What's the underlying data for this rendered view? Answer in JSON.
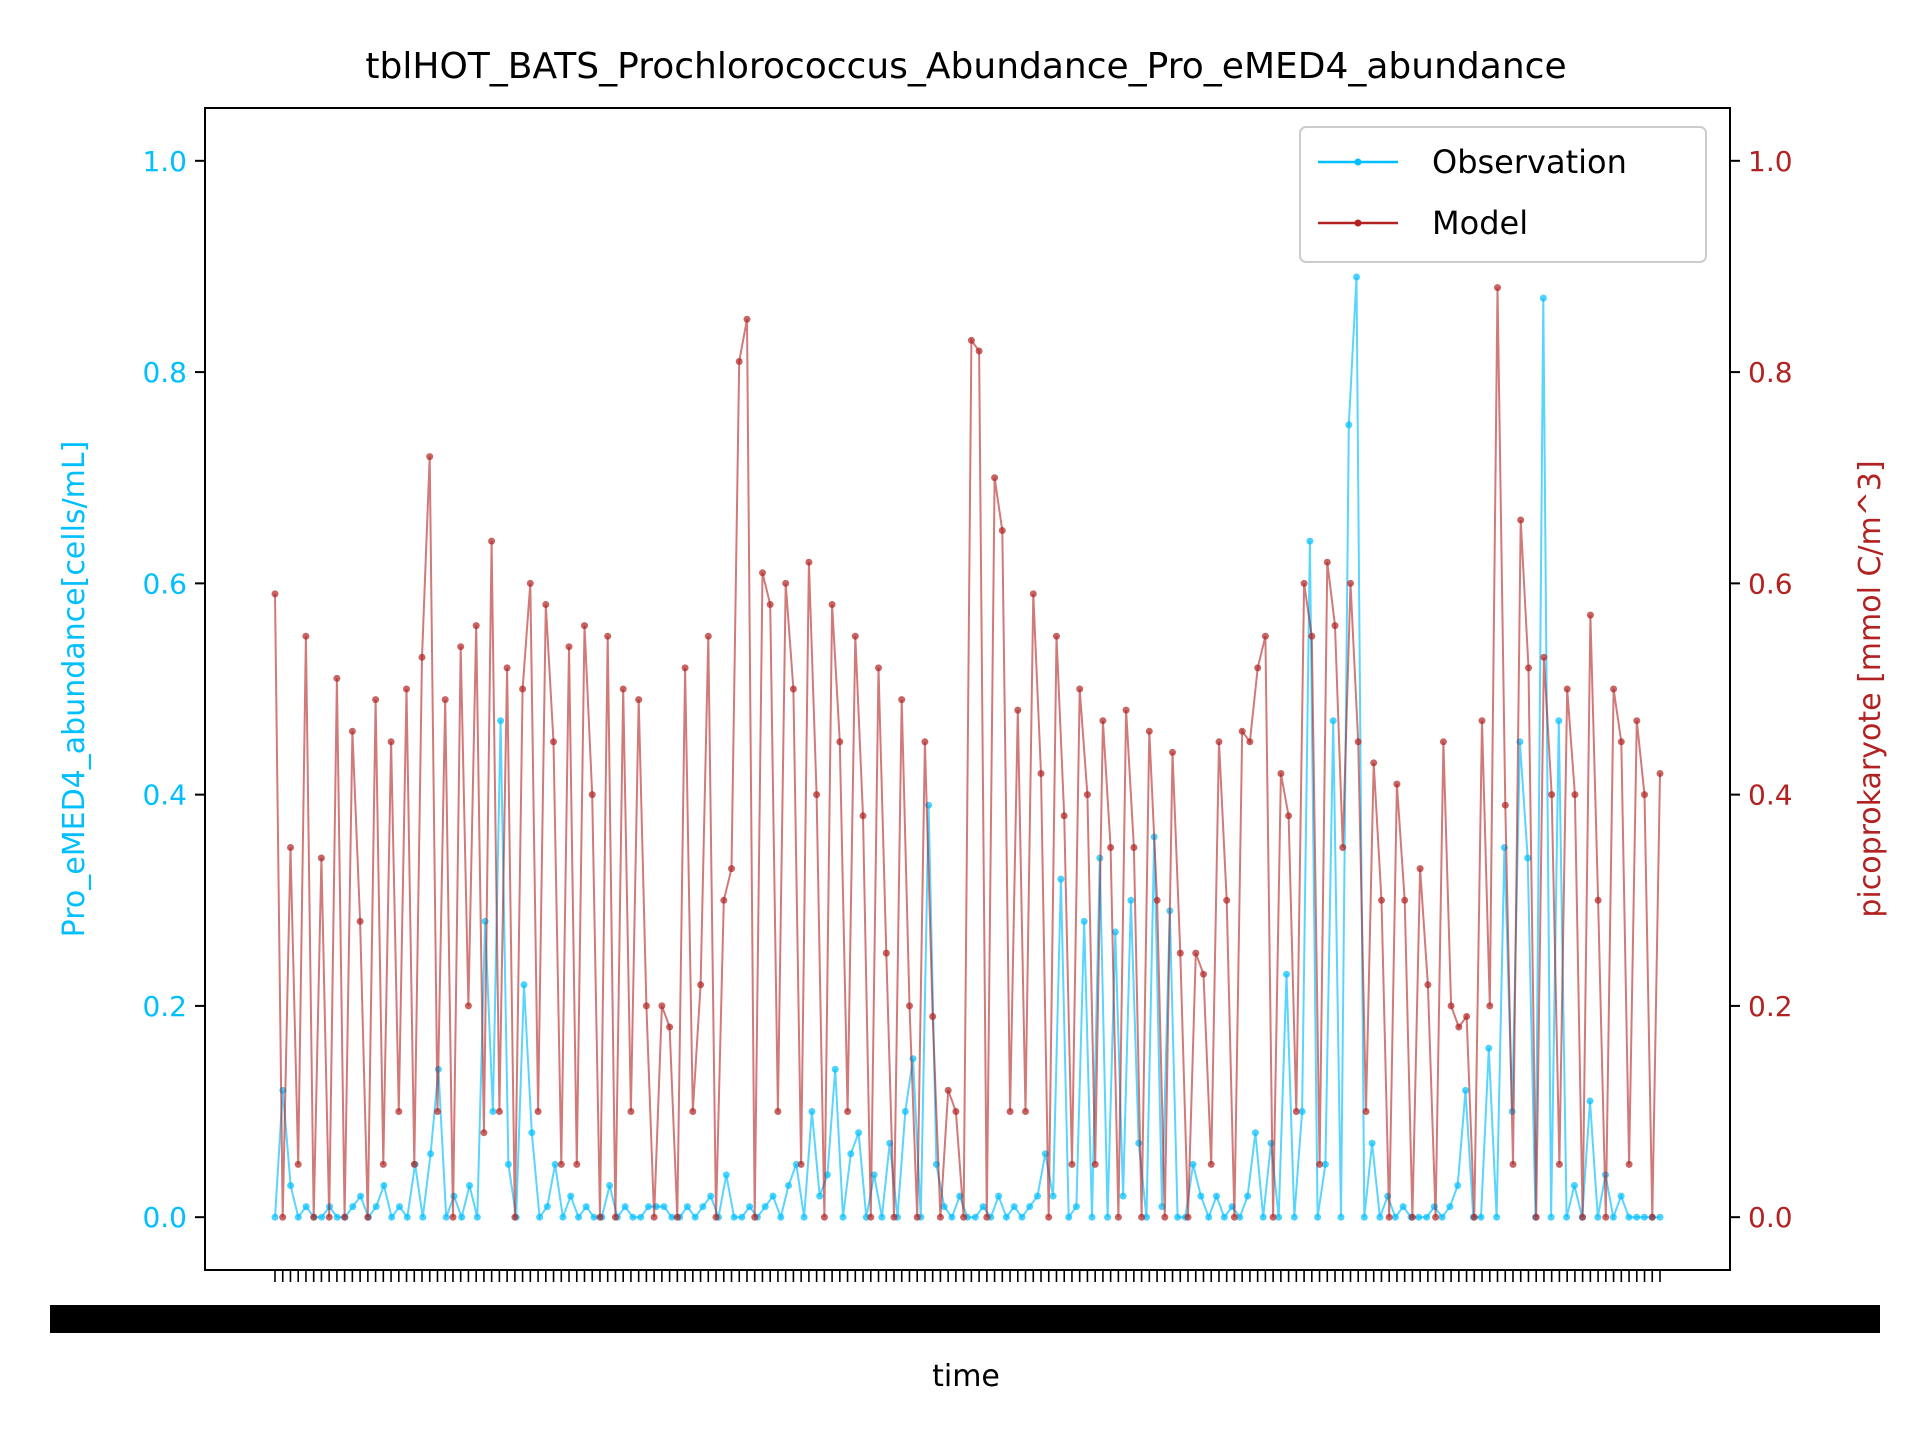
{
  "chart_data": {
    "type": "line",
    "title": "tblHOT_BATS_Prochlorococcus_Abundance_Pro_eMED4_abundance",
    "xlabel": "time",
    "ylabel_left": "Pro_eMED4_abundance[cells/mL]",
    "ylabel_right": "picoprokaryote [mmol C/m^3]",
    "ylim_left": [
      -0.05,
      1.05
    ],
    "ylim_right": [
      -0.05,
      1.05
    ],
    "yticks_left": [
      "0.0",
      "0.2",
      "0.4",
      "0.6",
      "0.8",
      "1.0"
    ],
    "yticks_right": [
      "0.0",
      "0.2",
      "0.4",
      "0.6",
      "0.8",
      "1.0"
    ],
    "x_tick_count": 180,
    "x_tick_labels_note": "dense overlapping date labels (illegible)",
    "legend_position": "top-right",
    "grid": false,
    "colors": {
      "observation": "#00bfff",
      "model": "#b22222"
    },
    "series": [
      {
        "name": "Observation",
        "axis": "left",
        "values": [
          0.0,
          0.12,
          0.03,
          0.0,
          0.01,
          0.0,
          0.0,
          0.01,
          0.0,
          0.0,
          0.01,
          0.02,
          0.0,
          0.01,
          0.03,
          0.0,
          0.01,
          0.0,
          0.05,
          0.0,
          0.06,
          0.14,
          0.0,
          0.02,
          0.0,
          0.03,
          0.0,
          0.28,
          0.1,
          0.47,
          0.05,
          0.0,
          0.22,
          0.08,
          0.0,
          0.01,
          0.05,
          0.0,
          0.02,
          0.0,
          0.01,
          0.0,
          0.0,
          0.03,
          0.0,
          0.01,
          0.0,
          0.0,
          0.01,
          0.01,
          0.01,
          0.0,
          0.0,
          0.01,
          0.0,
          0.01,
          0.02,
          0.0,
          0.04,
          0.0,
          0.0,
          0.01,
          0.0,
          0.01,
          0.02,
          0.0,
          0.03,
          0.05,
          0.0,
          0.1,
          0.02,
          0.04,
          0.14,
          0.0,
          0.06,
          0.08,
          0.0,
          0.04,
          0.0,
          0.07,
          0.0,
          0.1,
          0.15,
          0.0,
          0.39,
          0.05,
          0.01,
          0.0,
          0.02,
          0.0,
          0.0,
          0.01,
          0.0,
          0.02,
          0.0,
          0.01,
          0.0,
          0.01,
          0.02,
          0.06,
          0.02,
          0.32,
          0.0,
          0.01,
          0.28,
          0.0,
          0.34,
          0.0,
          0.27,
          0.02,
          0.3,
          0.07,
          0.0,
          0.36,
          0.01,
          0.29,
          0.0,
          0.0,
          0.05,
          0.02,
          0.0,
          0.02,
          0.0,
          0.01,
          0.0,
          0.02,
          0.08,
          0.0,
          0.07,
          0.0,
          0.23,
          0.0,
          0.1,
          0.64,
          0.0,
          0.05,
          0.47,
          0.0,
          0.75,
          0.89,
          0.0,
          0.07,
          0.0,
          0.02,
          0.0,
          0.01,
          0.0,
          0.0,
          0.0,
          0.01,
          0.0,
          0.01,
          0.03,
          0.12,
          0.0,
          0.0,
          0.16,
          0.0,
          0.35,
          0.1,
          0.45,
          0.34,
          0.0,
          0.87,
          0.0,
          0.47,
          0.0,
          0.03,
          0.0,
          0.11,
          0.0,
          0.04,
          0.0,
          0.02,
          0.0,
          0.0,
          0.0,
          0.0,
          0.0
        ],
        "note": "blue line with small dot markers; values estimated"
      },
      {
        "name": "Model",
        "axis": "right",
        "values": [
          0.59,
          0.0,
          0.35,
          0.05,
          0.55,
          0.0,
          0.34,
          0.0,
          0.51,
          0.0,
          0.46,
          0.28,
          0.0,
          0.49,
          0.05,
          0.45,
          0.1,
          0.5,
          0.05,
          0.53,
          0.72,
          0.1,
          0.49,
          0.0,
          0.54,
          0.2,
          0.56,
          0.08,
          0.64,
          0.1,
          0.52,
          0.0,
          0.5,
          0.6,
          0.1,
          0.58,
          0.45,
          0.05,
          0.54,
          0.05,
          0.56,
          0.4,
          0.0,
          0.55,
          0.0,
          0.5,
          0.1,
          0.49,
          0.2,
          0.0,
          0.2,
          0.18,
          0.0,
          0.52,
          0.1,
          0.22,
          0.55,
          0.0,
          0.3,
          0.33,
          0.81,
          0.85,
          0.0,
          0.61,
          0.58,
          0.1,
          0.6,
          0.5,
          0.05,
          0.62,
          0.4,
          0.0,
          0.58,
          0.45,
          0.1,
          0.55,
          0.38,
          0.0,
          0.52,
          0.25,
          0.0,
          0.49,
          0.2,
          0.0,
          0.45,
          0.19,
          0.0,
          0.12,
          0.1,
          0.0,
          0.83,
          0.82,
          0.0,
          0.7,
          0.65,
          0.1,
          0.48,
          0.1,
          0.59,
          0.42,
          0.0,
          0.55,
          0.38,
          0.05,
          0.5,
          0.4,
          0.05,
          0.47,
          0.35,
          0.0,
          0.48,
          0.35,
          0.0,
          0.46,
          0.3,
          0.0,
          0.44,
          0.25,
          0.0,
          0.25,
          0.23,
          0.05,
          0.45,
          0.3,
          0.0,
          0.46,
          0.45,
          0.52,
          0.55,
          0.0,
          0.42,
          0.38,
          0.1,
          0.6,
          0.55,
          0.05,
          0.62,
          0.56,
          0.35,
          0.6,
          0.45,
          0.1,
          0.43,
          0.3,
          0.0,
          0.41,
          0.3,
          0.0,
          0.33,
          0.22,
          0.0,
          0.45,
          0.2,
          0.18,
          0.19,
          0.0,
          0.47,
          0.2,
          0.88,
          0.39,
          0.05,
          0.66,
          0.52,
          0.0,
          0.53,
          0.4,
          0.05,
          0.5,
          0.4,
          0.0,
          0.57,
          0.3,
          0.0,
          0.5,
          0.45,
          0.05,
          0.47,
          0.4,
          0.0,
          0.42
        ],
        "note": "dark red line with small dot markers; values estimated"
      }
    ]
  }
}
